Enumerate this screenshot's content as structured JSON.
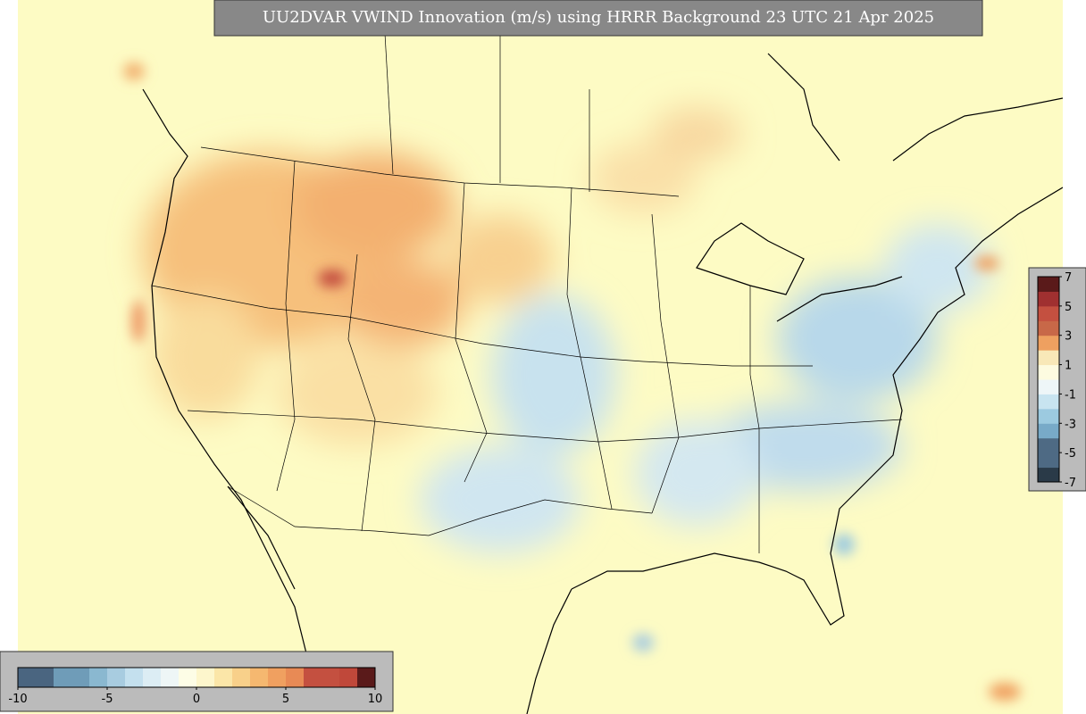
{
  "title": "UU2DVAR VWIND Innovation (m/s) using HRRR Background 23 UTC 21 Apr 2025",
  "colorbars": [
    {
      "orientation": "horizontal",
      "ticks": [
        -10,
        -5,
        0,
        5,
        10
      ],
      "colors": [
        "#4a6580",
        "#4a6580",
        "#6f9cb8",
        "#6f9cb8",
        "#8ab8d0",
        "#a8cce0",
        "#c4e0ee",
        "#dcedf4",
        "#eef6f6",
        "#fdfde6",
        "#fdf6cc",
        "#fbe6a8",
        "#f8d08a",
        "#f5b870",
        "#f0a060",
        "#e88a55",
        "#c45040",
        "#c45040",
        "#c0483a",
        "#5a1a1a"
      ]
    },
    {
      "orientation": "vertical",
      "ticks": [
        7,
        5,
        3,
        1,
        -1,
        -3,
        -5,
        -7
      ],
      "colors": [
        "#2a3a48",
        "#4e6a84",
        "#4e6a84",
        "#78aac8",
        "#9ccae0",
        "#c8e4f0",
        "#eef6f8",
        "#fdfbe0",
        "#f8e8b8",
        "#eea060",
        "#c86848",
        "#c45040",
        "#a03030",
        "#5a1a1a"
      ]
    }
  ]
}
